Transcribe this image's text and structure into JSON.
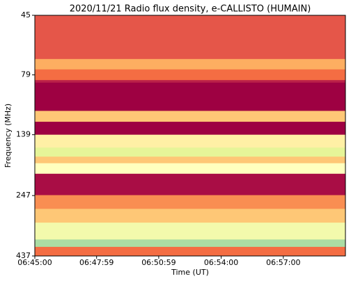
{
  "chart_data": {
    "type": "heatmap",
    "title": "2020/11/21  Radio flux density, e-CALLISTO (HUMAIN)",
    "x_label": "Time (UT)",
    "y_label": "Frequency (MHz)",
    "xlim": [
      "06:45:00",
      "07:00:00"
    ],
    "xticks": [
      "06:45:00",
      "06:47:59",
      "06:50:59",
      "06:54:00",
      "06:57:00"
    ],
    "ylim": [
      45,
      437
    ],
    "yticks": [
      45,
      79,
      139,
      247,
      437
    ],
    "y_log": true,
    "y_inverted": true,
    "y_bins": [
      45,
      68,
      75,
      83,
      85,
      111,
      123,
      139,
      157,
      171,
      182,
      201,
      246,
      280,
      319,
      374,
      401,
      437
    ],
    "values": [
      0.15,
      0.3,
      0.2,
      0.05,
      0.0,
      0.35,
      0.0,
      0.45,
      0.6,
      0.35,
      0.5,
      0.02,
      0.25,
      0.35,
      0.55,
      0.7,
      0.2
    ],
    "zlim": [
      0,
      1
    ],
    "colormap": [
      "#9e0142",
      "#d53e4f",
      "#f46d43",
      "#fdae61",
      "#fee08b",
      "#ffffbf",
      "#e6f598",
      "#abdda4",
      "#66c2a5",
      "#3288bd",
      "#5e4fa2"
    ]
  }
}
